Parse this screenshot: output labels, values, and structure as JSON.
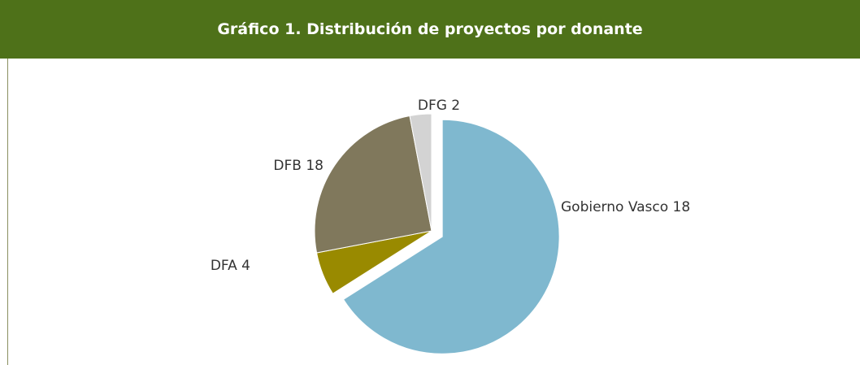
{
  "chart_data": {
    "type": "pie",
    "title": "Gráfico 1. Distribución de proyectos por donante",
    "categories": [
      "Gobierno Vasco 18",
      "DFA 4",
      "DFB 18",
      "DFG 2"
    ],
    "values": [
      66,
      6,
      25,
      3
    ],
    "colors": [
      "#7fb8cf",
      "#998a00",
      "#80785c",
      "#d3d3d3"
    ],
    "exploded": [
      true,
      false,
      false,
      false
    ]
  }
}
